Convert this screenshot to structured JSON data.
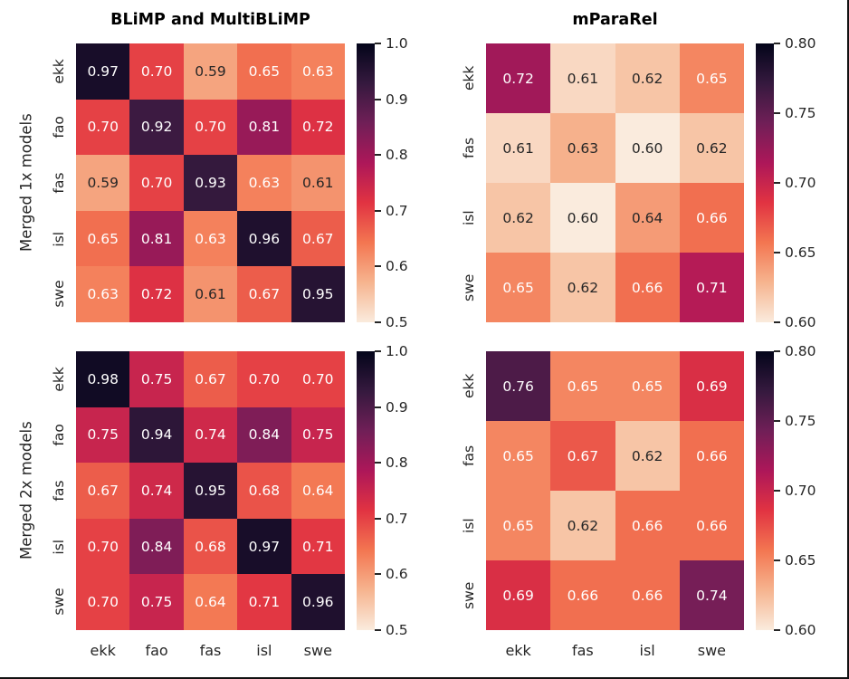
{
  "figure": {
    "column_titles": [
      "BLiMP and MultiBLiMP",
      "mParaRel"
    ],
    "row_group_labels": [
      "Merged 1x models",
      "Merged 2x models"
    ],
    "text_color": "#262626",
    "background": "#ffffff"
  },
  "chart_data": [
    {
      "type": "heatmap",
      "position": "top-left",
      "title": "BLiMP and MultiBLiMP",
      "row_label": "Merged 1x models",
      "languages": [
        "ekk",
        "fao",
        "fas",
        "isl",
        "swe"
      ],
      "show_xticklabels": false,
      "vmin": 0.5,
      "vmax": 1.0,
      "colorbar_tick_labels": [
        "1.0",
        "0.9",
        "0.8",
        "0.7",
        "0.6",
        "0.5"
      ],
      "colormap": "rocket_r",
      "values": [
        [
          0.97,
          0.7,
          0.59,
          0.65,
          0.63
        ],
        [
          0.7,
          0.92,
          0.7,
          0.81,
          0.72
        ],
        [
          0.59,
          0.7,
          0.93,
          0.63,
          0.61
        ],
        [
          0.65,
          0.81,
          0.63,
          0.96,
          0.67
        ],
        [
          0.63,
          0.72,
          0.61,
          0.67,
          0.95
        ]
      ]
    },
    {
      "type": "heatmap",
      "position": "top-right",
      "title": "mParaRel",
      "languages": [
        "ekk",
        "fas",
        "isl",
        "swe"
      ],
      "show_xticklabels": false,
      "vmin": 0.6,
      "vmax": 0.8,
      "colorbar_tick_labels": [
        "0.80",
        "0.75",
        "0.70",
        "0.65",
        "0.60"
      ],
      "colormap": "rocket_r",
      "values": [
        [
          0.72,
          0.61,
          0.62,
          0.65
        ],
        [
          0.61,
          0.63,
          0.6,
          0.62
        ],
        [
          0.62,
          0.6,
          0.64,
          0.66
        ],
        [
          0.65,
          0.62,
          0.66,
          0.71
        ]
      ]
    },
    {
      "type": "heatmap",
      "position": "bottom-left",
      "row_label": "Merged 2x models",
      "languages": [
        "ekk",
        "fao",
        "fas",
        "isl",
        "swe"
      ],
      "show_xticklabels": true,
      "vmin": 0.5,
      "vmax": 1.0,
      "colorbar_tick_labels": [
        "1.0",
        "0.9",
        "0.8",
        "0.7",
        "0.6",
        "0.5"
      ],
      "colormap": "rocket_r",
      "values": [
        [
          0.98,
          0.75,
          0.67,
          0.7,
          0.7
        ],
        [
          0.75,
          0.94,
          0.74,
          0.84,
          0.75
        ],
        [
          0.67,
          0.74,
          0.95,
          0.68,
          0.64
        ],
        [
          0.7,
          0.84,
          0.68,
          0.97,
          0.71
        ],
        [
          0.7,
          0.75,
          0.64,
          0.71,
          0.96
        ]
      ]
    },
    {
      "type": "heatmap",
      "position": "bottom-right",
      "languages": [
        "ekk",
        "fas",
        "isl",
        "swe"
      ],
      "show_xticklabels": true,
      "vmin": 0.6,
      "vmax": 0.8,
      "colorbar_tick_labels": [
        "0.80",
        "0.75",
        "0.70",
        "0.65",
        "0.60"
      ],
      "colormap": "rocket_r",
      "values": [
        [
          0.76,
          0.65,
          0.65,
          0.69
        ],
        [
          0.65,
          0.67,
          0.62,
          0.66
        ],
        [
          0.65,
          0.62,
          0.66,
          0.66
        ],
        [
          0.69,
          0.66,
          0.66,
          0.74
        ]
      ]
    }
  ]
}
